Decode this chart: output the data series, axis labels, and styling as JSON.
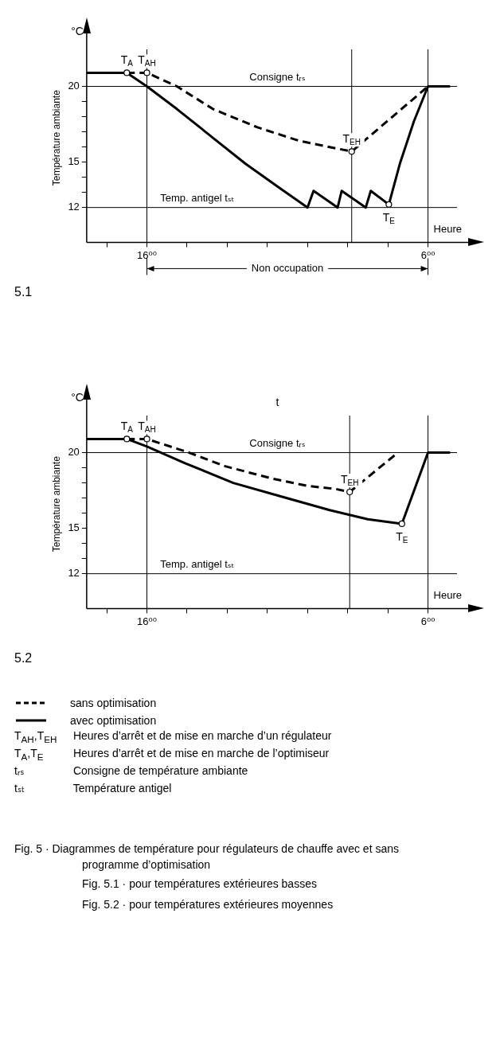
{
  "chart_data": [
    {
      "type": "line",
      "title": "5.1",
      "xlabel": "Heure",
      "ylabel": "Température ambiante",
      "xlim": [
        "--01-01T13:00",
        "--01-02T08:00"
      ],
      "xticks": [
        {
          "value": "--01-01T14:00",
          "label": null
        },
        {
          "value": "--01-01T16:00",
          "label": "16⁰⁰"
        },
        {
          "value": "--01-01T18:00",
          "label": null
        },
        {
          "value": "--01-01T20:00",
          "label": null
        },
        {
          "value": "--01-01T22:00",
          "label": null
        },
        {
          "value": "--01-02T00:00",
          "label": null
        },
        {
          "value": "--01-02T02:00",
          "label": null
        },
        {
          "value": "--01-02T04:00",
          "label": null
        },
        {
          "value": "--01-02T06:00",
          "label": "6⁰⁰"
        }
      ],
      "ylim": [
        9.7,
        23.5
      ],
      "yticks": [
        12,
        {
          "value": 13,
          "label": null
        },
        {
          "value": 14,
          "label": null
        },
        15,
        {
          "value": 16,
          "label": null
        },
        {
          "value": 17,
          "label": null
        },
        {
          "value": 18,
          "label": null
        },
        {
          "value": 19,
          "label": null
        },
        20
      ],
      "series": [
        {
          "color": "#000000",
          "line_style": "dashed",
          "x": [
            "--01-01T15:00",
            "--01-01T16:00",
            "--01-01T17:30",
            "--01-01T19:18",
            "--01-01T21:30",
            "--01-01T23:36",
            "--01-02T02:12",
            "--01-02T06:00"
          ],
          "values": [
            20.9,
            20.9,
            20,
            18.5,
            17.3,
            16.4,
            15.7,
            20
          ]
        },
        {
          "color": "#000000",
          "line_style": "solid",
          "x": [
            "--01-01T13:00",
            "--01-01T15:00",
            "--01-01T16:00",
            "--01-01T17:30",
            "--01-01T19:12",
            "--01-01T20:54",
            "--01-01T22:36",
            "--01-02T00:00",
            "--01-02T00:18",
            "--01-02T01:30",
            "--01-02T01:42",
            "--01-02T02:54",
            "--01-02T03:09",
            "--01-02T04:03",
            "--01-02T04:36",
            "--01-02T05:18",
            "--01-02T06:00",
            "--01-02T07:06"
          ],
          "values": [
            20.9,
            20.9,
            20,
            18.5,
            16.7,
            14.9,
            13.3,
            12,
            13.1,
            12,
            13.1,
            12,
            13.1,
            12.2,
            14.9,
            17.7,
            20,
            20
          ]
        }
      ],
      "ref_lines": [
        {
          "axis": "y",
          "value": 20,
          "label": "Consigne tᵣₛ"
        },
        {
          "axis": "y",
          "value": 12,
          "label": "Temp. antigel tₛₜ"
        },
        {
          "axis": "x",
          "value": "--01-01T16:00"
        },
        {
          "axis": "x",
          "value": "--01-02T02:12"
        },
        {
          "axis": "x",
          "value": "--01-02T06:00"
        }
      ],
      "annotations": [
        "°C",
        "Non occupation",
        {
          "text": "T$_{A}$",
          "x": "--01-01T15:00",
          "y": 20.9
        },
        {
          "text": "T$_{AH}$",
          "x": "--01-01T16:00",
          "y": 20.9
        },
        {
          "text": "T$_{EH}$",
          "x": "--01-02T02:12",
          "y": 15.7
        },
        {
          "text": "T$_{E}$",
          "x": "--01-02T04:03",
          "y": 12.2
        }
      ]
    },
    {
      "type": "line",
      "title": "5.2",
      "xlabel": "Heure",
      "ylabel": "Température ambiante",
      "xlim": [
        "--01-01T13:00",
        "--01-02T08:00"
      ],
      "xticks": [
        {
          "value": "--01-01T14:00",
          "label": null
        },
        {
          "value": "--01-01T16:00",
          "label": "16⁰⁰"
        },
        {
          "value": "--01-01T18:00",
          "label": null
        },
        {
          "value": "--01-01T20:00",
          "label": null
        },
        {
          "value": "--01-01T22:00",
          "label": null
        },
        {
          "value": "--01-02T00:00",
          "label": null
        },
        {
          "value": "--01-02T02:00",
          "label": null
        },
        {
          "value": "--01-02T04:00",
          "label": null
        },
        {
          "value": "--01-02T06:00",
          "label": "6⁰⁰"
        }
      ],
      "ylim": [
        9.7,
        23.5
      ],
      "yticks": [
        12,
        {
          "value": 13,
          "label": null
        },
        {
          "value": 14,
          "label": null
        },
        15,
        {
          "value": 16,
          "label": null
        },
        {
          "value": 17,
          "label": null
        },
        {
          "value": 18,
          "label": null
        },
        {
          "value": 19,
          "label": null
        },
        20
      ],
      "legend": "bottom",
      "series": [
        {
          "name": "sans optimisation",
          "color": "#000000",
          "line_style": "dashed",
          "x": [
            "--01-01T15:00",
            "--01-01T16:00",
            "--01-01T18:06",
            "--01-01T19:54",
            "--01-01T22:12",
            "--01-02T00:00",
            "--01-02T01:24",
            "--01-02T02:06",
            "--01-02T04:30"
          ],
          "values": [
            20.9,
            20.9,
            20,
            19.1,
            18.3,
            17.8,
            17.6,
            17.4,
            20
          ]
        },
        {
          "name": "avec optimisation",
          "color": "#000000",
          "line_style": "solid",
          "x": [
            "--01-01T13:00",
            "--01-01T15:00",
            "--01-01T16:00",
            "--01-01T17:54",
            "--01-01T20:18",
            "--01-01T22:42",
            "--01-02T01:06",
            "--01-02T03:00",
            "--01-02T04:42",
            "--01-02T06:00",
            "--01-02T07:06"
          ],
          "values": [
            20.9,
            20.9,
            20.4,
            19.3,
            18.0,
            17.1,
            16.2,
            15.6,
            15.3,
            20,
            20
          ]
        }
      ],
      "ref_lines": [
        {
          "axis": "y",
          "value": 20,
          "label": "Consigne tᵣₛ"
        },
        {
          "axis": "y",
          "value": 12,
          "label": "Temp. antigel tₛₜ"
        },
        {
          "axis": "x",
          "value": "--01-01T16:00"
        },
        {
          "axis": "x",
          "value": "--01-02T02:06"
        },
        {
          "axis": "x",
          "value": "--01-02T06:00"
        }
      ],
      "annotations": [
        "°C",
        "t",
        {
          "text": "T$_{A}$",
          "x": "--01-01T15:00",
          "y": 20.9
        },
        {
          "text": "T$_{AH}$",
          "x": "--01-01T16:00",
          "y": 20.9
        },
        {
          "text": "T$_{EH}$",
          "x": "--01-02T02:06",
          "y": 17.4
        },
        {
          "text": "T$_{E}$",
          "x": "--01-02T04:42",
          "y": 15.3
        },
        "T$_{AH}$,T$_{EH}$ Heures d’arrêt et de mise en marche d’un régulateur",
        "T$_{A}$,T$_{E}$ Heures d’arrêt et de mise en marche de l’optimiseur",
        "tᵣₛ Consigne de température ambiante",
        "tₛₜ Température antigel",
        "Fig. 5 · Diagrammes de température pour régulateurs de chauffe avec et sans programme d’optimisation",
        "Fig. 5.1 · pour températures extérieures basses",
        "Fig. 5.2 · pour températures extérieures moyennes"
      ]
    }
  ]
}
